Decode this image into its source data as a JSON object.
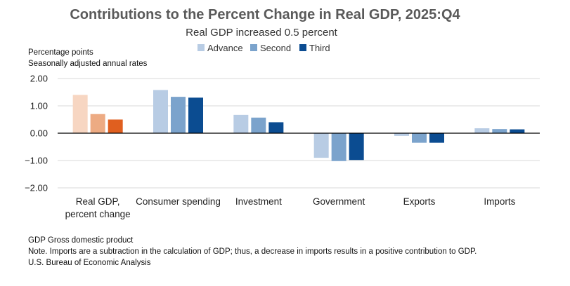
{
  "chart_data": {
    "type": "bar",
    "title": "Contributions to the Percent Change in Real GDP, 2025:Q4",
    "subtitle": "Real GDP increased 0.5 percent",
    "unit_lines": [
      "Percentage points",
      "Seasonally adjusted annual rates"
    ],
    "categories": [
      [
        "Real GDP,",
        "percent change"
      ],
      [
        "Consumer spending"
      ],
      [
        "Investment"
      ],
      [
        "Government"
      ],
      [
        "Exports"
      ],
      [
        "Imports"
      ]
    ],
    "series": [
      {
        "name": "Advance",
        "values": [
          1.4,
          1.58,
          0.67,
          -0.9,
          -0.1,
          0.18
        ],
        "color": "#b8cce4"
      },
      {
        "name": "Second",
        "values": [
          0.7,
          1.33,
          0.57,
          -1.02,
          -0.35,
          0.15
        ],
        "color": "#7ba3cc"
      },
      {
        "name": "Third",
        "values": [
          0.5,
          1.3,
          0.4,
          -0.98,
          -0.35,
          0.14
        ],
        "color": "#0b4c91"
      }
    ],
    "first_category_colors": [
      "#f7d6c2",
      "#edab83",
      "#e05f1f"
    ],
    "ylim": [
      -2.0,
      2.0
    ],
    "yticks": [
      2.0,
      1.0,
      0.0,
      -1.0,
      -2.0
    ],
    "ytick_labels": [
      "2.00",
      "1.00",
      "0.00",
      "−1.00",
      "−2.00"
    ],
    "legend_position": "top-center",
    "grid": true
  },
  "notes": [
    "GDP Gross domestic product",
    "Note. Imports are a subtraction in the calculation of GDP; thus, a decrease in imports results in a positive contribution to GDP.",
    "U.S. Bureau of Economic Analysis"
  ]
}
